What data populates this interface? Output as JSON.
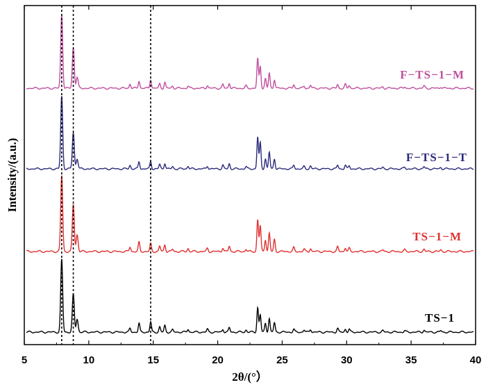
{
  "chart_data": {
    "type": "line",
    "title": "",
    "xlabel": "2θ/(°）",
    "ylabel": "Intensity/(a.u.)",
    "xlim": [
      5,
      40
    ],
    "x_ticks": [
      "5",
      "10",
      "15",
      "20",
      "25",
      "30",
      "35",
      "40"
    ],
    "reference_lines_x": [
      7.9,
      8.8,
      14.8
    ],
    "legend": "labels placed beside each curve",
    "peaks_x": [
      7.9,
      8.8,
      9.1,
      13.2,
      13.9,
      14.8,
      15.5,
      15.9,
      16.5,
      17.7,
      19.2,
      20.4,
      20.9,
      22.2,
      23.1,
      23.3,
      23.7,
      24.0,
      24.4,
      25.9,
      26.7,
      27.2,
      29.3,
      29.9,
      30.2,
      32.8,
      34.5,
      36.0,
      37.3
    ],
    "series": [
      {
        "name": "TS-1",
        "color": "#000000",
        "intensities": [
          1.0,
          0.52,
          0.18,
          0.05,
          0.12,
          0.14,
          0.07,
          0.09,
          0.03,
          0.04,
          0.04,
          0.04,
          0.06,
          0.03,
          0.34,
          0.24,
          0.12,
          0.19,
          0.13,
          0.04,
          0.03,
          0.04,
          0.05,
          0.04,
          0.04,
          0.02,
          0.02,
          0.03,
          0.02
        ]
      },
      {
        "name": "TS-1-M",
        "color": "#e0302f",
        "intensities": [
          1.0,
          0.62,
          0.22,
          0.06,
          0.12,
          0.1,
          0.07,
          0.09,
          0.03,
          0.04,
          0.04,
          0.05,
          0.07,
          0.03,
          0.42,
          0.34,
          0.16,
          0.24,
          0.16,
          0.05,
          0.03,
          0.04,
          0.06,
          0.05,
          0.04,
          0.02,
          0.02,
          0.03,
          0.02
        ]
      },
      {
        "name": "F-TS-1-T",
        "color": "#2b2a7c",
        "intensities": [
          1.0,
          0.5,
          0.14,
          0.05,
          0.1,
          0.1,
          0.06,
          0.08,
          0.03,
          0.04,
          0.04,
          0.05,
          0.07,
          0.03,
          0.44,
          0.36,
          0.14,
          0.23,
          0.14,
          0.05,
          0.03,
          0.04,
          0.05,
          0.05,
          0.04,
          0.02,
          0.02,
          0.03,
          0.02
        ]
      },
      {
        "name": "F-TS-1-M",
        "color": "#c04f9d",
        "intensities": [
          1.0,
          0.55,
          0.15,
          0.06,
          0.1,
          0.12,
          0.06,
          0.08,
          0.03,
          0.03,
          0.04,
          0.05,
          0.07,
          0.03,
          0.4,
          0.3,
          0.13,
          0.2,
          0.12,
          0.05,
          0.03,
          0.04,
          0.05,
          0.05,
          0.04,
          0.02,
          0.02,
          0.03,
          0.02
        ]
      }
    ]
  }
}
